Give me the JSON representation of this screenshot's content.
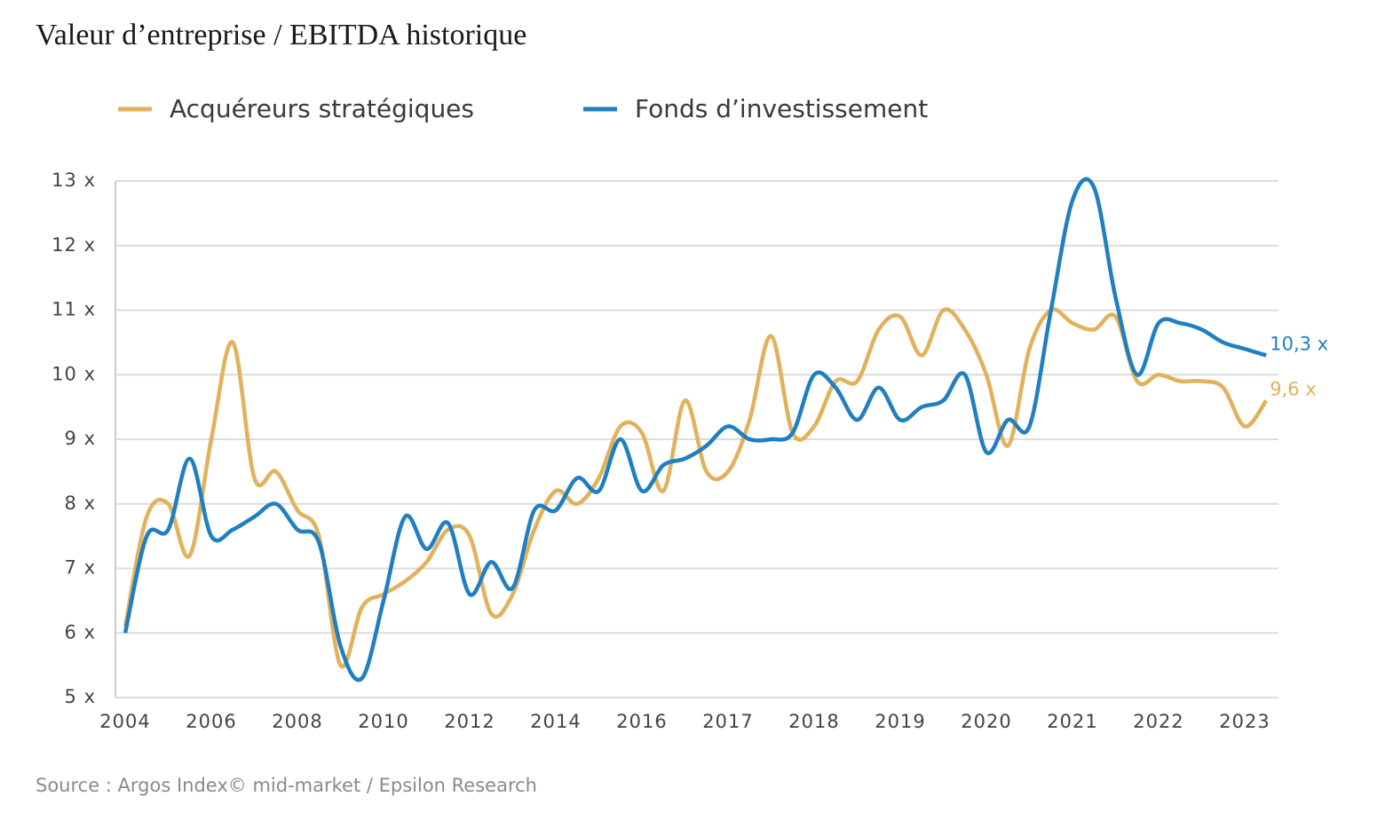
{
  "chart_data": {
    "type": "line",
    "title": "Valeur d’entreprise / EBITDA historique",
    "source": "Source : Argos Index© mid-market / Epsilon Research",
    "categories": [
      "2004",
      null,
      null,
      null,
      "2006",
      null,
      null,
      null,
      "2008",
      null,
      null,
      null,
      "2010",
      null,
      null,
      null,
      "2012",
      null,
      null,
      null,
      "2014",
      null,
      null,
      null,
      "2016",
      null,
      null,
      null,
      "2017",
      null,
      null,
      null,
      "2018",
      null,
      null,
      null,
      "2019",
      null,
      null,
      null,
      "2020",
      null,
      null,
      null,
      "2021",
      null,
      null,
      null,
      "2022",
      null,
      null,
      null,
      "2023",
      null
    ],
    "series": [
      {
        "name": "Acquéreurs stratégiques",
        "color": "#e2b15c",
        "values": [
          6.1,
          7.8,
          8.0,
          7.2,
          9.0,
          10.5,
          8.4,
          8.5,
          7.9,
          7.5,
          5.5,
          6.4,
          6.6,
          6.8,
          7.1,
          7.6,
          7.5,
          6.3,
          6.6,
          7.6,
          8.2,
          8.0,
          8.4,
          9.2,
          9.1,
          8.2,
          9.6,
          8.5,
          8.5,
          9.3,
          10.6,
          9.1,
          9.2,
          9.9,
          9.9,
          10.7,
          10.9,
          10.3,
          11.0,
          10.7,
          10.0,
          8.9,
          10.4,
          11.0,
          10.8,
          10.7,
          10.9,
          9.9,
          10.0,
          9.9,
          9.9,
          9.8,
          9.2,
          9.6
        ],
        "value_labels": [
          null,
          null,
          null,
          null,
          null,
          null,
          null,
          null,
          null,
          null,
          null,
          null,
          null,
          null,
          null,
          null,
          null,
          null,
          null,
          null,
          null,
          null,
          null,
          null,
          null,
          null,
          null,
          null,
          null,
          null,
          null,
          null,
          null,
          null,
          null,
          null,
          null,
          null,
          null,
          null,
          null,
          null,
          null,
          null,
          null,
          null,
          null,
          null,
          null,
          null,
          null,
          null,
          null,
          "9,6 x"
        ]
      },
      {
        "name": "Fonds d’investissement",
        "color": "#1f7fc1",
        "values": [
          6.0,
          7.5,
          7.6,
          8.7,
          7.5,
          7.6,
          7.8,
          8.0,
          7.6,
          7.4,
          5.8,
          5.3,
          6.5,
          7.8,
          7.3,
          7.7,
          6.6,
          7.1,
          6.7,
          7.9,
          7.9,
          8.4,
          8.2,
          9.0,
          8.2,
          8.6,
          8.7,
          8.9,
          9.2,
          9.0,
          9.0,
          9.1,
          10.0,
          9.8,
          9.3,
          9.8,
          9.3,
          9.5,
          9.6,
          10.0,
          8.8,
          9.3,
          9.2,
          11.0,
          12.7,
          12.9,
          11.2,
          10.0,
          10.8,
          10.8,
          10.7,
          10.5,
          10.4,
          10.3
        ],
        "value_labels": [
          null,
          null,
          null,
          null,
          null,
          null,
          null,
          null,
          null,
          null,
          null,
          null,
          null,
          null,
          null,
          null,
          null,
          null,
          null,
          null,
          null,
          null,
          null,
          null,
          null,
          null,
          null,
          null,
          null,
          null,
          null,
          null,
          null,
          null,
          null,
          null,
          null,
          null,
          null,
          null,
          null,
          null,
          null,
          null,
          null,
          null,
          null,
          null,
          null,
          null,
          null,
          null,
          null,
          "10,3 x"
        ]
      }
    ],
    "ylim": [
      5,
      13
    ],
    "yticks": [
      {
        "value": 5,
        "label": "5 x"
      },
      {
        "value": 6,
        "label": "6 x"
      },
      {
        "value": 7,
        "label": "7 x"
      },
      {
        "value": 8,
        "label": "8 x"
      },
      {
        "value": 9,
        "label": "9 x"
      },
      {
        "value": 10,
        "label": "10 x"
      },
      {
        "value": 11,
        "label": "11 x"
      },
      {
        "value": 12,
        "label": "12 x"
      },
      {
        "value": 13,
        "label": "13 x"
      }
    ],
    "grid": true
  }
}
